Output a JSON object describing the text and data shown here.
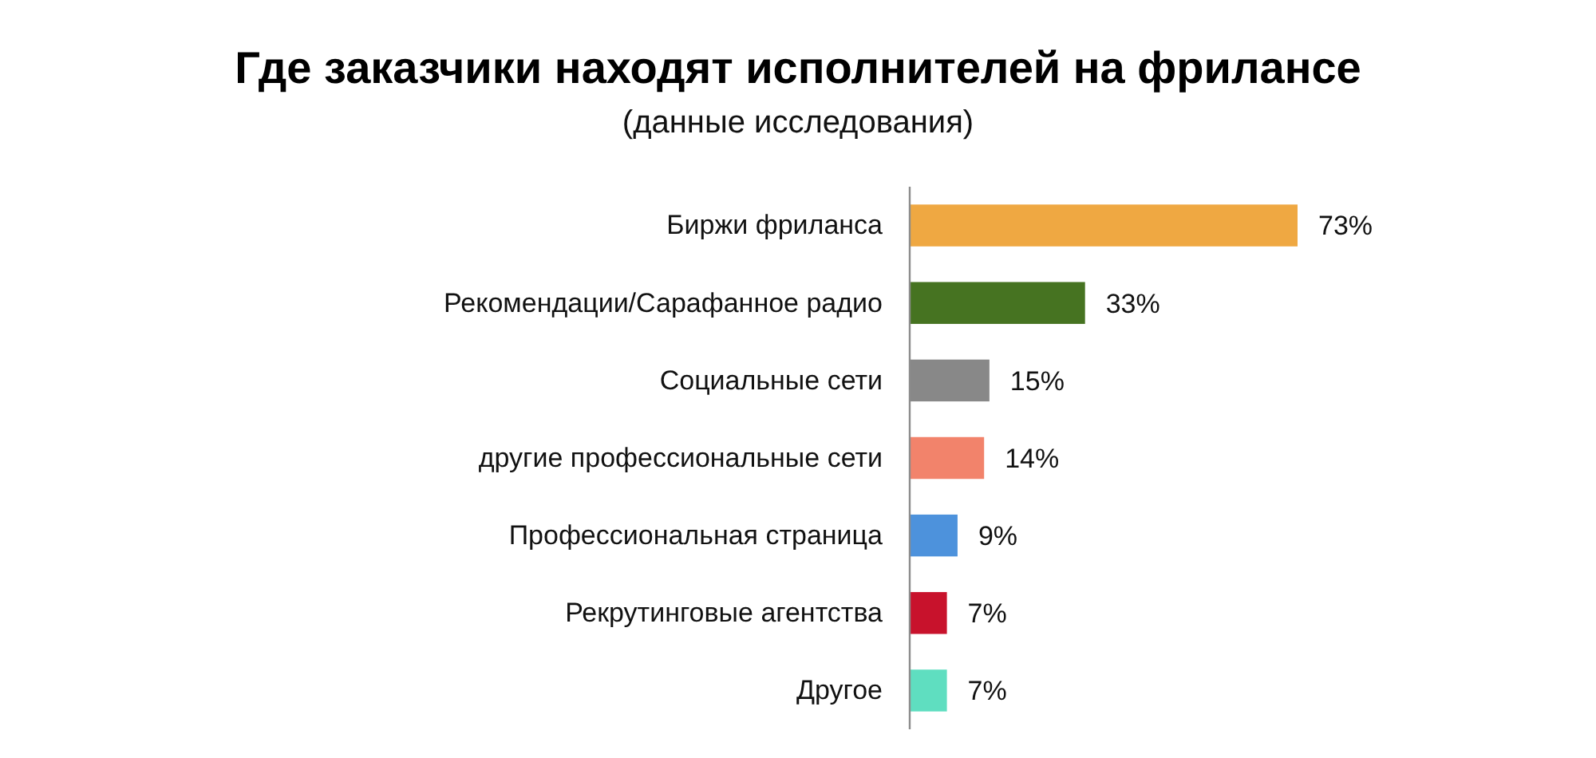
{
  "chart_data": {
    "type": "bar",
    "orientation": "horizontal",
    "title": "Где заказчики находят исполнителей на фрилансе",
    "subtitle": "(данные исследования)",
    "categories": [
      "Биржи фриланса",
      "Рекомендации/Сарафанное радио",
      "Социальные сети",
      "другие профессиональные сети",
      "Профессиональная страница",
      "Рекрутинговые агентства",
      "Другое"
    ],
    "values": [
      73,
      33,
      15,
      14,
      9,
      7,
      7
    ],
    "colors": [
      "#efa842",
      "#467321",
      "#888888",
      "#f2836b",
      "#4d92dc",
      "#c8122c",
      "#5fdec0"
    ],
    "value_labels": [
      "73%",
      "33%",
      "15%",
      "14%",
      "9%",
      "7%",
      "7%"
    ]
  }
}
